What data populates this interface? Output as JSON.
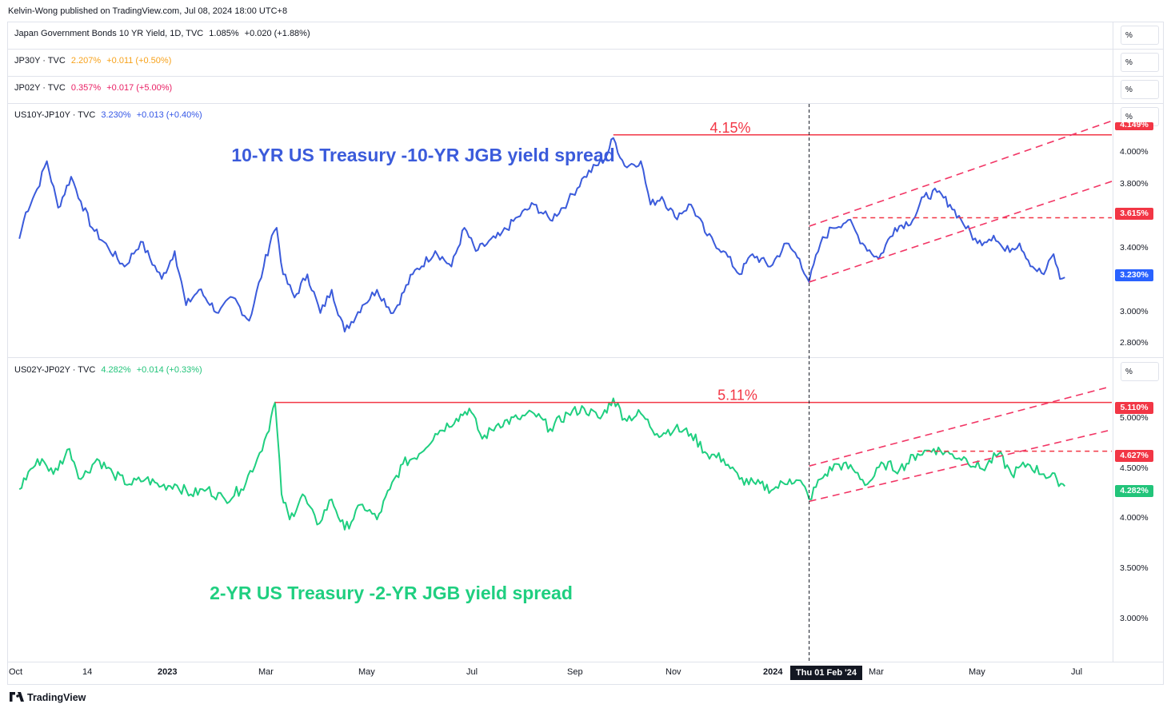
{
  "header": {
    "published": "Kelvin-Wong published on TradingView.com, Jul 08, 2024 18:00 UTC+8"
  },
  "panes": [
    {
      "symbol": "Japan Government Bonds 10 YR Yield, 1D, TVC",
      "value": "1.085%",
      "change": "+0.020 (+1.88%)",
      "color": "#131722",
      "unit": "%"
    },
    {
      "symbol": "JP30Y · TVC",
      "value": "2.207%",
      "change": "+0.011 (+0.50%)",
      "color": "#f7a21b",
      "unit": "%"
    },
    {
      "symbol": "JP02Y · TVC",
      "value": "0.357%",
      "change": "+0.017 (+5.00%)",
      "color": "#e91e63",
      "unit": "%"
    },
    {
      "symbol": "US10Y-JP10Y · TVC",
      "value": "3.230%",
      "change": "+0.013 (+0.40%)",
      "color": "#3356e6",
      "unit": "%"
    },
    {
      "symbol": "US02Y-JP02Y · TVC",
      "value": "4.282%",
      "change": "+0.014 (+0.33%)",
      "color": "#22c47a",
      "unit": "%"
    }
  ],
  "chart_data": [
    {
      "type": "line",
      "title": "10-YR US Treasury -10-YR JGB yield spread",
      "series_name": "US10Y-JP10Y",
      "color": "#3b5bdb",
      "y_ticks": [
        "4.000%",
        "3.800%",
        "3.400%",
        "3.000%",
        "2.800%"
      ],
      "ylim": [
        2.72,
        4.35
      ],
      "last_value": 3.23,
      "last_label": "3.230%",
      "resistance": {
        "value": 4.15,
        "label": "4.15%"
      },
      "level": {
        "value": 3.615,
        "label": "3.615%"
      },
      "top_badge": "4.149%",
      "keypoints": [
        [
          "2022-10-01",
          3.48
        ],
        [
          "2022-10-05",
          3.65
        ],
        [
          "2022-10-12",
          3.8
        ],
        [
          "2022-10-18",
          3.98
        ],
        [
          "2022-10-25",
          3.68
        ],
        [
          "2022-11-02",
          3.88
        ],
        [
          "2022-11-08",
          3.72
        ],
        [
          "2022-11-15",
          3.55
        ],
        [
          "2022-11-25",
          3.42
        ],
        [
          "2022-12-05",
          3.3
        ],
        [
          "2022-12-15",
          3.46
        ],
        [
          "2022-12-28",
          3.22
        ],
        [
          "2023-01-05",
          3.4
        ],
        [
          "2023-01-12",
          3.05
        ],
        [
          "2023-01-20",
          3.15
        ],
        [
          "2023-02-01",
          3.0
        ],
        [
          "2023-02-10",
          3.1
        ],
        [
          "2023-02-20",
          2.95
        ],
        [
          "2023-03-01",
          3.3
        ],
        [
          "2023-03-06",
          3.5
        ],
        [
          "2023-03-09",
          3.55
        ],
        [
          "2023-03-13",
          3.25
        ],
        [
          "2023-03-20",
          3.1
        ],
        [
          "2023-03-28",
          3.25
        ],
        [
          "2023-04-05",
          3.0
        ],
        [
          "2023-04-12",
          3.15
        ],
        [
          "2023-04-20",
          2.88
        ],
        [
          "2023-05-01",
          3.05
        ],
        [
          "2023-05-10",
          3.15
        ],
        [
          "2023-05-20",
          3.0
        ],
        [
          "2023-06-01",
          3.25
        ],
        [
          "2023-06-15",
          3.4
        ],
        [
          "2023-06-25",
          3.3
        ],
        [
          "2023-07-03",
          3.55
        ],
        [
          "2023-07-10",
          3.4
        ],
        [
          "2023-07-25",
          3.5
        ],
        [
          "2023-08-05",
          3.62
        ],
        [
          "2023-08-15",
          3.7
        ],
        [
          "2023-08-25",
          3.6
        ],
        [
          "2023-09-05",
          3.72
        ],
        [
          "2023-09-15",
          3.88
        ],
        [
          "2023-09-28",
          4.0
        ],
        [
          "2023-10-03",
          4.13
        ],
        [
          "2023-10-10",
          3.95
        ],
        [
          "2023-10-20",
          3.98
        ],
        [
          "2023-10-26",
          3.7
        ],
        [
          "2023-11-02",
          3.75
        ],
        [
          "2023-11-10",
          3.62
        ],
        [
          "2023-11-20",
          3.7
        ],
        [
          "2023-11-30",
          3.5
        ],
        [
          "2023-12-10",
          3.4
        ],
        [
          "2023-12-20",
          3.25
        ],
        [
          "2023-12-28",
          3.38
        ],
        [
          "2024-01-08",
          3.3
        ],
        [
          "2024-01-18",
          3.45
        ],
        [
          "2024-01-26",
          3.35
        ],
        [
          "2024-02-01",
          3.2
        ],
        [
          "2024-02-08",
          3.45
        ],
        [
          "2024-02-15",
          3.55
        ],
        [
          "2024-02-25",
          3.6
        ],
        [
          "2024-03-05",
          3.45
        ],
        [
          "2024-03-15",
          3.35
        ],
        [
          "2024-03-25",
          3.55
        ],
        [
          "2024-04-05",
          3.6
        ],
        [
          "2024-04-12",
          3.75
        ],
        [
          "2024-04-20",
          3.78
        ],
        [
          "2024-04-28",
          3.7
        ],
        [
          "2024-05-05",
          3.6
        ],
        [
          "2024-05-15",
          3.45
        ],
        [
          "2024-05-25",
          3.5
        ],
        [
          "2024-06-01",
          3.4
        ],
        [
          "2024-06-10",
          3.45
        ],
        [
          "2024-06-18",
          3.3
        ],
        [
          "2024-06-25",
          3.25
        ],
        [
          "2024-07-01",
          3.38
        ],
        [
          "2024-07-05",
          3.22
        ],
        [
          "2024-07-08",
          3.23
        ]
      ]
    },
    {
      "type": "line",
      "title": "2-YR US Treasury -2-YR JGB yield spread",
      "series_name": "US02Y-JP02Y",
      "color": "#1fcf80",
      "y_ticks": [
        "5.000%",
        "4.500%",
        "4.000%",
        "3.500%",
        "3.000%"
      ],
      "ylim": [
        2.55,
        5.55
      ],
      "last_value": 4.282,
      "last_label": "4.282%",
      "resistance": {
        "value": 5.11,
        "label": "5.11%"
      },
      "level": {
        "value": 4.627,
        "label": "4.627%"
      },
      "top_badge": "5.110%",
      "keypoints": [
        [
          "2022-10-01",
          4.25
        ],
        [
          "2022-10-08",
          4.45
        ],
        [
          "2022-10-15",
          4.55
        ],
        [
          "2022-10-22",
          4.4
        ],
        [
          "2022-11-01",
          4.65
        ],
        [
          "2022-11-08",
          4.35
        ],
        [
          "2022-11-18",
          4.55
        ],
        [
          "2022-11-28",
          4.4
        ],
        [
          "2022-12-08",
          4.3
        ],
        [
          "2022-12-18",
          4.35
        ],
        [
          "2022-12-28",
          4.28
        ],
        [
          "2023-01-05",
          4.3
        ],
        [
          "2023-01-15",
          4.2
        ],
        [
          "2023-01-25",
          4.25
        ],
        [
          "2023-02-05",
          4.15
        ],
        [
          "2023-02-15",
          4.25
        ],
        [
          "2023-02-25",
          4.55
        ],
        [
          "2023-03-03",
          4.8
        ],
        [
          "2023-03-08",
          5.11
        ],
        [
          "2023-03-12",
          4.2
        ],
        [
          "2023-03-17",
          3.95
        ],
        [
          "2023-03-25",
          4.2
        ],
        [
          "2023-04-03",
          3.9
        ],
        [
          "2023-04-12",
          4.15
        ],
        [
          "2023-04-20",
          3.85
        ],
        [
          "2023-05-01",
          4.1
        ],
        [
          "2023-05-10",
          3.95
        ],
        [
          "2023-05-18",
          4.25
        ],
        [
          "2023-05-26",
          4.5
        ],
        [
          "2023-06-05",
          4.6
        ],
        [
          "2023-06-15",
          4.8
        ],
        [
          "2023-06-28",
          4.95
        ],
        [
          "2023-07-06",
          5.05
        ],
        [
          "2023-07-14",
          4.75
        ],
        [
          "2023-07-24",
          4.9
        ],
        [
          "2023-08-05",
          4.95
        ],
        [
          "2023-08-15",
          5.0
        ],
        [
          "2023-08-25",
          4.85
        ],
        [
          "2023-09-05",
          5.0
        ],
        [
          "2023-09-15",
          5.05
        ],
        [
          "2023-09-25",
          4.95
        ],
        [
          "2023-10-03",
          5.15
        ],
        [
          "2023-10-10",
          4.95
        ],
        [
          "2023-10-20",
          5.0
        ],
        [
          "2023-10-30",
          4.8
        ],
        [
          "2023-11-10",
          4.85
        ],
        [
          "2023-11-20",
          4.8
        ],
        [
          "2023-11-30",
          4.6
        ],
        [
          "2023-12-10",
          4.55
        ],
        [
          "2023-12-20",
          4.35
        ],
        [
          "2023-12-30",
          4.3
        ],
        [
          "2024-01-10",
          4.25
        ],
        [
          "2024-01-20",
          4.35
        ],
        [
          "2024-01-28",
          4.3
        ],
        [
          "2024-02-01",
          4.15
        ],
        [
          "2024-02-08",
          4.35
        ],
        [
          "2024-02-18",
          4.5
        ],
        [
          "2024-02-28",
          4.45
        ],
        [
          "2024-03-08",
          4.3
        ],
        [
          "2024-03-18",
          4.5
        ],
        [
          "2024-03-28",
          4.45
        ],
        [
          "2024-04-08",
          4.6
        ],
        [
          "2024-04-18",
          4.65
        ],
        [
          "2024-04-28",
          4.6
        ],
        [
          "2024-05-08",
          4.55
        ],
        [
          "2024-05-18",
          4.45
        ],
        [
          "2024-05-28",
          4.6
        ],
        [
          "2024-06-05",
          4.4
        ],
        [
          "2024-06-15",
          4.5
        ],
        [
          "2024-06-25",
          4.4
        ],
        [
          "2024-07-03",
          4.35
        ],
        [
          "2024-07-08",
          4.28
        ]
      ]
    }
  ],
  "x_axis": {
    "ticks": [
      {
        "label": "Oct",
        "date": "2022-10-01",
        "bold": false
      },
      {
        "label": "14",
        "date": "2022-11-14",
        "bold": false
      },
      {
        "label": "2023",
        "date": "2023-01-01",
        "bold": true
      },
      {
        "label": "Mar",
        "date": "2023-03-01",
        "bold": false
      },
      {
        "label": "May",
        "date": "2023-05-01",
        "bold": false
      },
      {
        "label": "Jul",
        "date": "2023-07-01",
        "bold": false
      },
      {
        "label": "Sep",
        "date": "2023-09-01",
        "bold": false
      },
      {
        "label": "Nov",
        "date": "2023-11-01",
        "bold": false
      },
      {
        "label": "2024",
        "date": "2024-01-01",
        "bold": true
      },
      {
        "label": "Mar",
        "date": "2024-03-01",
        "bold": false
      },
      {
        "label": "May",
        "date": "2024-05-01",
        "bold": false
      },
      {
        "label": "Jul",
        "date": "2024-07-01",
        "bold": false
      }
    ],
    "crosshair_date": "2024-02-01",
    "crosshair_label": "Thu 01 Feb '24"
  },
  "footer": {
    "brand": "TradingView"
  }
}
